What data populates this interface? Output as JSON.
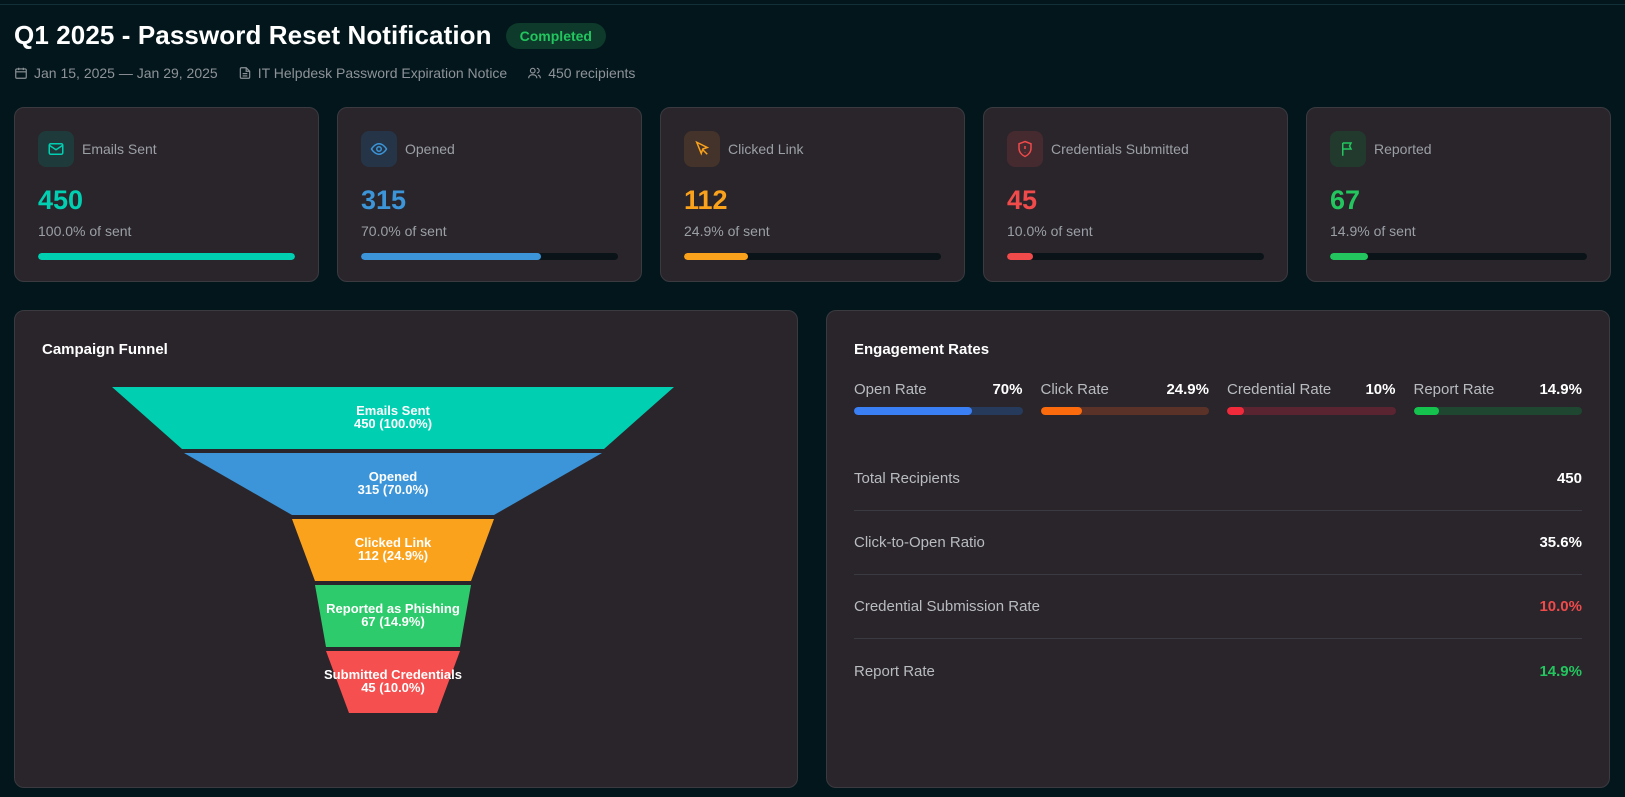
{
  "header": {
    "title": "Q1 2025 - Password Reset Notification",
    "status": "Completed",
    "date_range": "Jan 15, 2025 — Jan 29, 2025",
    "template": "IT Helpdesk Password Expiration Notice",
    "recipients": "450 recipients"
  },
  "stats": [
    {
      "label": "Emails Sent",
      "value": "450",
      "sub": "100.0% of sent",
      "fraction": 1.0,
      "color": "#00cfb1",
      "icon": "mail-icon"
    },
    {
      "label": "Opened",
      "value": "315",
      "sub": "70.0% of sent",
      "fraction": 0.7,
      "color": "#3b95d8",
      "icon": "eye-icon"
    },
    {
      "label": "Clicked Link",
      "value": "112",
      "sub": "24.9% of sent",
      "fraction": 0.249,
      "color": "#fba21c",
      "icon": "cursor-icon"
    },
    {
      "label": "Credentials Submitted",
      "value": "45",
      "sub": "10.0% of sent",
      "fraction": 0.1,
      "color": "#f04a4a",
      "icon": "shield-alert-icon"
    },
    {
      "label": "Reported",
      "value": "67",
      "sub": "14.9% of sent",
      "fraction": 0.149,
      "color": "#22c55e",
      "icon": "flag-icon"
    }
  ],
  "funnel": {
    "title": "Campaign Funnel",
    "stages": [
      {
        "label": "Emails Sent",
        "value": "450 (100.0%)",
        "color": "#00cfb1"
      },
      {
        "label": "Opened",
        "value": "315 (70.0%)",
        "color": "#3b95d8"
      },
      {
        "label": "Clicked Link",
        "value": "112 (24.9%)",
        "color": "#fba21c"
      },
      {
        "label": "Reported as Phishing",
        "value": "67 (14.9%)",
        "color": "#2ecb6c"
      },
      {
        "label": "Submitted Credentials",
        "value": "45 (10.0%)",
        "color": "#f54f4f"
      }
    ]
  },
  "engagement": {
    "title": "Engagement Rates",
    "rates": [
      {
        "name": "Open Rate",
        "value": "70%",
        "fraction": 0.7,
        "color": "#3b7ff5",
        "track": "#263a5c"
      },
      {
        "name": "Click Rate",
        "value": "24.9%",
        "fraction": 0.249,
        "color": "#fb6a0c",
        "track": "#5a3228"
      },
      {
        "name": "Credential Rate",
        "value": "10%",
        "fraction": 0.1,
        "color": "#f02a3a",
        "track": "#5a2530"
      },
      {
        "name": "Report Rate",
        "value": "14.9%",
        "fraction": 0.149,
        "color": "#16c24e",
        "track": "#1f4630"
      }
    ],
    "metrics": [
      {
        "label": "Total Recipients",
        "value": "450",
        "color": "#ffffff"
      },
      {
        "label": "Click-to-Open Ratio",
        "value": "35.6%",
        "color": "#ffffff"
      },
      {
        "label": "Credential Submission Rate",
        "value": "10.0%",
        "color": "#f04a4a"
      },
      {
        "label": "Report Rate",
        "value": "14.9%",
        "color": "#22c55e"
      }
    ]
  }
}
